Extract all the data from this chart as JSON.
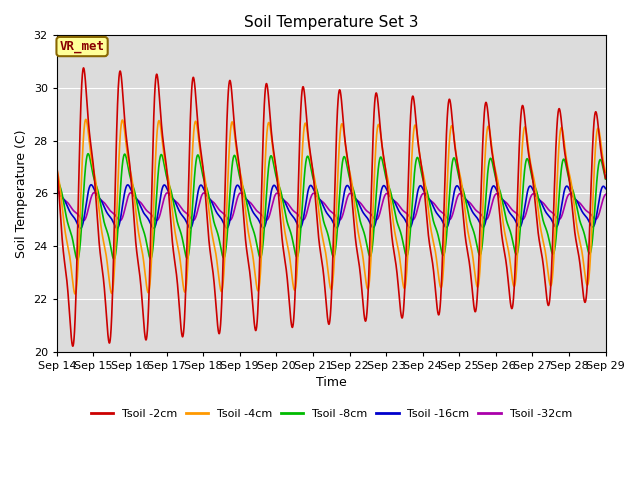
{
  "title": "Soil Temperature Set 3",
  "xlabel": "Time",
  "ylabel": "Soil Temperature (C)",
  "ylim": [
    20,
    32
  ],
  "yticks": [
    20,
    22,
    24,
    26,
    28,
    30,
    32
  ],
  "x_tick_labels": [
    "Sep 14",
    "Sep 15",
    "Sep 16",
    "Sep 17",
    "Sep 18",
    "Sep 19",
    "Sep 20",
    "Sep 21",
    "Sep 22",
    "Sep 23",
    "Sep 24",
    "Sep 25",
    "Sep 26",
    "Sep 27",
    "Sep 28",
    "Sep 29"
  ],
  "colors": {
    "Tsoil -2cm": "#cc0000",
    "Tsoil -4cm": "#ff9900",
    "Tsoil -8cm": "#00bb00",
    "Tsoil -16cm": "#0000cc",
    "Tsoil -32cm": "#aa00aa"
  },
  "bg_color": "#dcdcdc",
  "fig_bg": "#ffffff",
  "annotation_text": "VR_met",
  "annotation_fg": "#880000",
  "annotation_bg": "#ffff99",
  "annotation_border": "#886600",
  "n_days": 15,
  "pts_per_day": 288,
  "base_temp": 25.5,
  "amplitudes_day1": [
    4.5,
    2.8,
    1.7,
    0.7,
    0.45
  ],
  "amplitudes_day15": [
    3.0,
    2.5,
    1.5,
    0.65,
    0.4
  ],
  "phase_shifts_hours": [
    14.0,
    15.5,
    17.0,
    19.0,
    21.0
  ],
  "line_width": 1.2,
  "grid_color": "#ffffff",
  "title_fontsize": 11,
  "label_fontsize": 9,
  "tick_fontsize": 8,
  "legend_fontsize": 8
}
